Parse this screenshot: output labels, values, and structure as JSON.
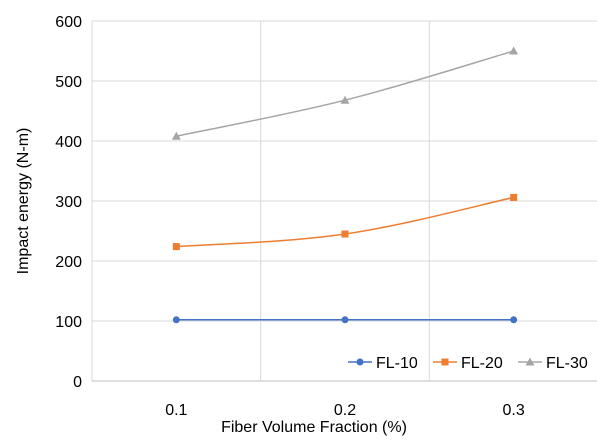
{
  "chart_data": {
    "type": "line",
    "title": "",
    "xlabel": "Fiber Volume Fraction (%)",
    "ylabel": "Impact energy (N-m)",
    "categories": [
      "0.1",
      "0.2",
      "0.3"
    ],
    "x": [
      0.1,
      0.2,
      0.3
    ],
    "xlim": [
      0.05,
      0.35
    ],
    "xgrid": [
      0.05,
      0.15,
      0.25,
      0.35
    ],
    "ylim": [
      0,
      600
    ],
    "yticks": [
      "0",
      "100",
      "200",
      "300",
      "400",
      "500",
      "600"
    ],
    "grid": true,
    "legend_position": "bottom-right",
    "series": [
      {
        "name": "FL-10",
        "values": [
          102,
          102,
          102
        ],
        "color": "#4472C4",
        "marker": "circle"
      },
      {
        "name": "FL-20",
        "values": [
          224,
          245,
          306
        ],
        "color": "#ED7D31",
        "marker": "square"
      },
      {
        "name": "FL-30",
        "values": [
          408,
          468,
          550
        ],
        "color": "#A5A5A5",
        "marker": "triangle"
      }
    ]
  }
}
